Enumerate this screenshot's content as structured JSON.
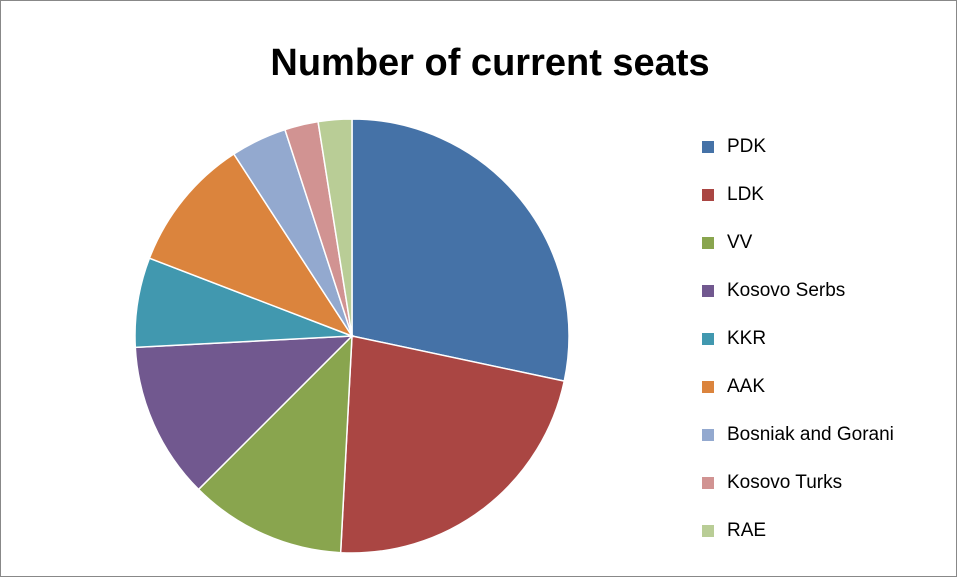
{
  "chart_data": {
    "type": "pie",
    "title": "Number of current seats",
    "categories": [
      "PDK",
      "LDK",
      "VV",
      "Kosovo Serbs",
      "KKR",
      "AAK",
      "Bosniak and Gorani",
      "Kosovo Turks",
      "RAE"
    ],
    "values": [
      34,
      27,
      14,
      14,
      8,
      12,
      5,
      3,
      3
    ],
    "colors": [
      "#4572a7",
      "#aa4643",
      "#89a54e",
      "#71588f",
      "#4198af",
      "#db843d",
      "#93a9cf",
      "#d19392",
      "#b9cd96"
    ],
    "legend": "right"
  }
}
